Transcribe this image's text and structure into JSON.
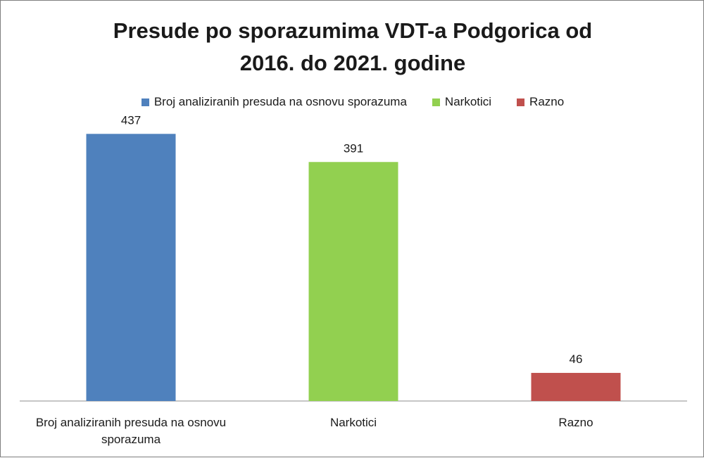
{
  "chart_data": {
    "type": "bar",
    "title_line1": "Presude po sporazumima VDT-a Podgorica od",
    "title_line2": "2016. do 2021. godine",
    "categories": [
      "Broj analiziranih presuda na osnovu sporazuma",
      "Narkotici",
      "Razno"
    ],
    "category_lines": [
      [
        "Broj analiziranih presuda na osnovu",
        "sporazuma"
      ],
      [
        "Narkotici"
      ],
      [
        "Razno"
      ]
    ],
    "values": [
      437,
      391,
      46
    ],
    "colors": [
      "#4f81bd",
      "#92d050",
      "#c0504d"
    ],
    "legend": {
      "placement": "top",
      "entries": [
        {
          "label": "Broj analiziranih presuda na osnovu sporazuma",
          "color": "#4f81bd"
        },
        {
          "label": "Narkotici",
          "color": "#92d050"
        },
        {
          "label": "Razno",
          "color": "#c0504d"
        }
      ]
    },
    "ylim": [
      0,
      450
    ],
    "grid": false,
    "xlabel": "",
    "ylabel": ""
  }
}
